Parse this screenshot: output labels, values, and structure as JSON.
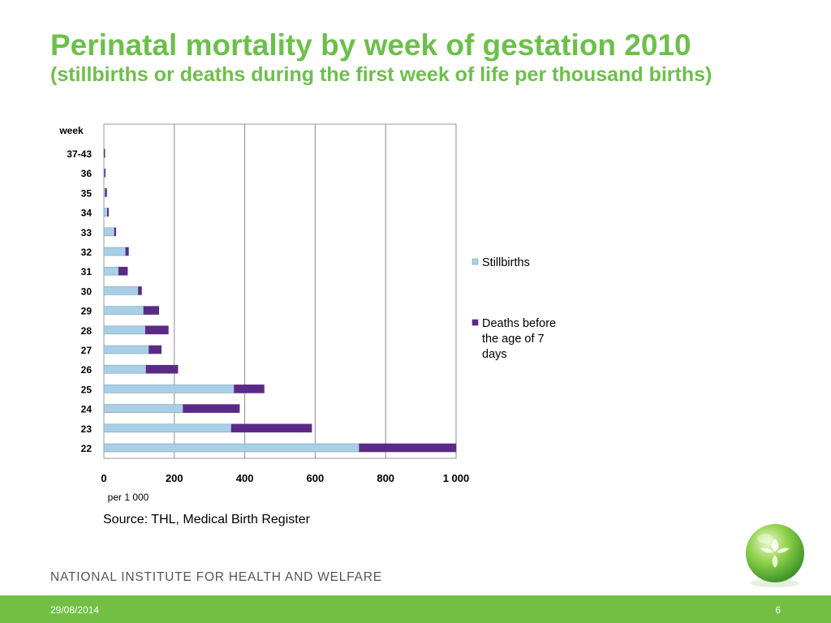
{
  "slide": {
    "title": "Perinatal mortality by week of gestation 2010",
    "subtitle": "(stillbirths or deaths during the first week of life per thousand births)",
    "source": "Source: THL, Medical Birth Register",
    "organization": "NATIONAL INSTITUTE FOR HEALTH AND WELFARE",
    "date": "29/08/2014",
    "page_number": "6",
    "logo_icon": "green-globe-logo-icon"
  },
  "colors": {
    "title": "#6cc04a",
    "footer": "#72bf44",
    "stillbirths": "#a9cfe6",
    "deaths": "#5b2a86"
  },
  "chart_data": {
    "type": "bar",
    "orientation": "horizontal",
    "stacked": true,
    "ylabel": "week",
    "xlabel": "per 1 000",
    "categories": [
      "37-43",
      "36",
      "35",
      "34",
      "33",
      "32",
      "31",
      "30",
      "29",
      "28",
      "27",
      "26",
      "25",
      "24",
      "23",
      "22"
    ],
    "series": [
      {
        "name": "Stillbirths",
        "color": "#a9cfe6",
        "values": [
          1,
          2,
          4,
          10,
          30,
          62,
          42,
          98,
          113,
          118,
          128,
          120,
          370,
          225,
          362,
          725
        ]
      },
      {
        "name": "Deaths before the age of 7 days",
        "color": "#5b2a86",
        "values": [
          1,
          2,
          4,
          3,
          4,
          8,
          25,
          9,
          43,
          65,
          35,
          90,
          85,
          160,
          228,
          275
        ]
      }
    ],
    "xlim": [
      0,
      1000
    ],
    "xticks": [
      0,
      200,
      400,
      600,
      800,
      1000
    ],
    "xtick_labels": [
      "0",
      "200",
      "400",
      "600",
      "800",
      "1 000"
    ],
    "grid": "vertical",
    "legend_position": "right"
  }
}
